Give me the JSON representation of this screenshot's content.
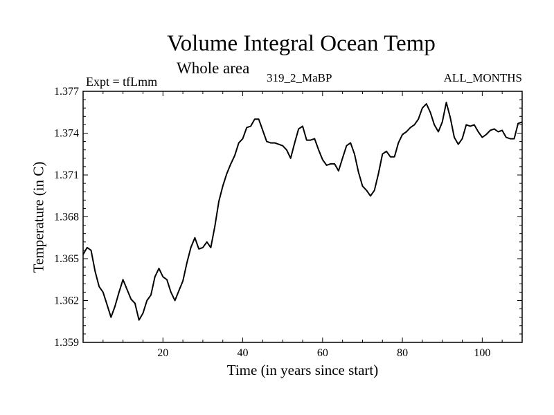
{
  "chart_data": {
    "type": "line",
    "title": "Volume Integral Ocean Temp",
    "subtitle": "Whole area",
    "annotations": {
      "experiment": "Expt = tfLmm",
      "run": "319_2_MaBP",
      "period": "ALL_MONTHS"
    },
    "xlabel": "Time (in years since start)",
    "ylabel": "Temperature (in C)",
    "xlim": [
      0,
      110
    ],
    "ylim": [
      1.359,
      1.377
    ],
    "xticks": [
      20,
      40,
      60,
      80,
      100
    ],
    "yticks": [
      1.359,
      1.362,
      1.365,
      1.368,
      1.371,
      1.374,
      1.377
    ],
    "ytick_labels": [
      "1.359",
      "1.362",
      "1.365",
      "1.368",
      "1.371",
      "1.374",
      "1.377"
    ],
    "grid": false,
    "series": [
      {
        "name": "Temperature",
        "color": "#000000",
        "x": [
          0,
          1,
          2,
          3,
          4,
          5,
          6,
          7,
          8,
          9,
          10,
          11,
          12,
          13,
          14,
          15,
          16,
          17,
          18,
          19,
          20,
          21,
          22,
          23,
          24,
          25,
          26,
          27,
          28,
          29,
          30,
          31,
          32,
          33,
          34,
          35,
          36,
          37,
          38,
          39,
          40,
          41,
          42,
          43,
          44,
          45,
          46,
          47,
          48,
          49,
          50,
          51,
          52,
          53,
          54,
          55,
          56,
          57,
          58,
          59,
          60,
          61,
          62,
          63,
          64,
          65,
          66,
          67,
          68,
          69,
          70,
          71,
          72,
          73,
          74,
          75,
          76,
          77,
          78,
          79,
          80,
          81,
          82,
          83,
          84,
          85,
          86,
          87,
          88,
          89,
          90,
          91,
          92,
          93,
          94,
          95,
          96,
          97,
          98,
          99,
          100,
          101,
          102,
          103,
          104,
          105,
          106,
          107,
          108,
          109,
          110
        ],
        "values": [
          1.3653,
          1.3658,
          1.3656,
          1.3641,
          1.363,
          1.3626,
          1.3617,
          1.3608,
          1.3616,
          1.3626,
          1.3635,
          1.3628,
          1.3621,
          1.3618,
          1.3606,
          1.3611,
          1.362,
          1.3624,
          1.3637,
          1.3643,
          1.3637,
          1.3635,
          1.3626,
          1.362,
          1.3627,
          1.3634,
          1.3647,
          1.3658,
          1.3665,
          1.3657,
          1.3658,
          1.3662,
          1.3658,
          1.3673,
          1.3691,
          1.3702,
          1.3711,
          1.3718,
          1.3724,
          1.3733,
          1.3736,
          1.3744,
          1.3745,
          1.375,
          1.375,
          1.3742,
          1.3734,
          1.3733,
          1.3733,
          1.3732,
          1.3731,
          1.3728,
          1.3722,
          1.3733,
          1.3743,
          1.3745,
          1.3735,
          1.3735,
          1.3736,
          1.3728,
          1.3721,
          1.3717,
          1.3718,
          1.3718,
          1.3713,
          1.3722,
          1.3731,
          1.3733,
          1.3725,
          1.3712,
          1.3702,
          1.3699,
          1.3695,
          1.3699,
          1.3711,
          1.3725,
          1.3727,
          1.3723,
          1.3723,
          1.3733,
          1.3739,
          1.3741,
          1.3744,
          1.3746,
          1.375,
          1.3758,
          1.3761,
          1.3755,
          1.3746,
          1.3741,
          1.3748,
          1.3762,
          1.3751,
          1.3737,
          1.3732,
          1.3736,
          1.3746,
          1.3745,
          1.3746,
          1.3741,
          1.3737,
          1.3739,
          1.3742,
          1.3743,
          1.3741,
          1.3742,
          1.3737,
          1.3736,
          1.3736,
          1.3747,
          1.3748
        ]
      }
    ]
  }
}
